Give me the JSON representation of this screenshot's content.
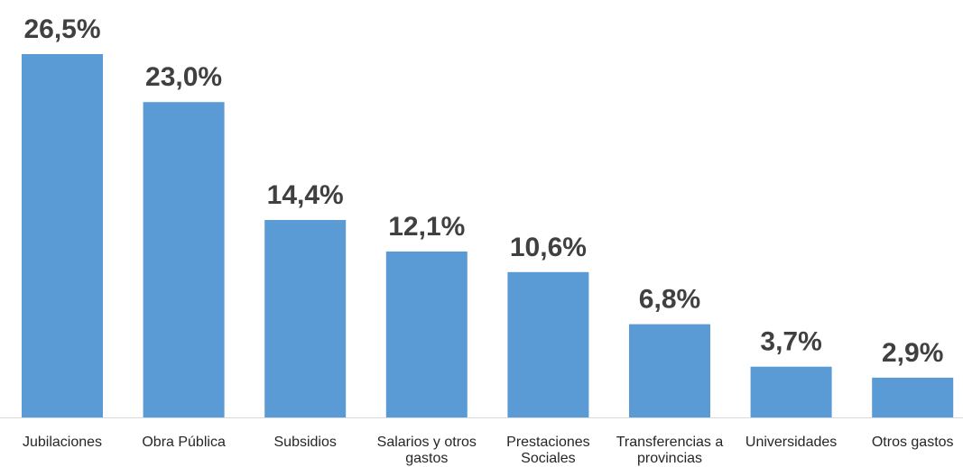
{
  "chart_data": {
    "type": "bar",
    "title": "",
    "xlabel": "",
    "ylabel": "",
    "categories": [
      "Jubilaciones",
      "Obra Pública",
      "Subsidios",
      "Salarios y otros gastos",
      "Prestaciones Sociales",
      "Transferencias a provincias",
      "Universidades",
      "Otros gastos"
    ],
    "values": [
      26.5,
      23.0,
      14.4,
      12.1,
      10.6,
      6.8,
      3.7,
      2.9
    ],
    "value_labels": [
      "26,5%",
      "23,0%",
      "14,4%",
      "12,1%",
      "10,6%",
      "6,8%",
      "3,7%",
      "2,9%"
    ],
    "ylim": [
      0,
      26.5
    ],
    "grid": false,
    "bar_color": "#5b9bd5",
    "label_color": "#404040",
    "axis_color": "#d9d9d9"
  }
}
